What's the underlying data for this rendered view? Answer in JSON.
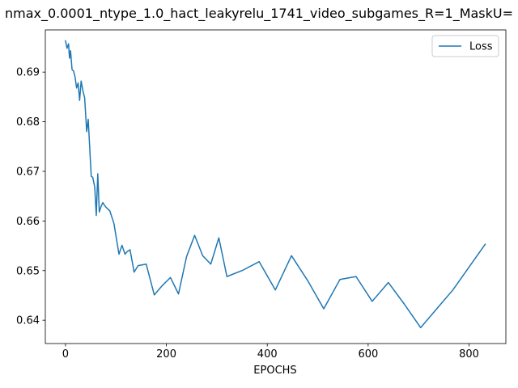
{
  "chart_data": {
    "type": "line",
    "title": "nmax_0.0001_ntype_1.0_hact_leakyrelu_1741_video_subgames_R=1_MaskU=",
    "xlabel": "EPOCHS",
    "ylabel": "",
    "xlim": [
      -40,
      873
    ],
    "ylim": [
      0.6353,
      0.6985
    ],
    "xticks": [
      0,
      200,
      400,
      600,
      800
    ],
    "yticks": [
      0.64,
      0.65,
      0.66,
      0.67,
      0.68,
      0.69
    ],
    "ytick_labels": [
      "0.64",
      "0.65",
      "0.66",
      "0.67",
      "0.68",
      "0.69"
    ],
    "grid": false,
    "legend": {
      "position": "top-right",
      "entries": [
        "Loss"
      ]
    },
    "series": [
      {
        "name": "Loss",
        "color": "#1f77b4",
        "x": [
          0,
          3,
          6,
          8,
          10,
          13,
          16,
          19,
          22,
          25,
          28,
          31,
          35,
          38,
          42,
          45,
          48,
          51,
          54,
          58,
          61,
          64,
          67,
          70,
          74,
          77,
          80,
          88,
          96,
          106,
          112,
          118,
          122,
          128,
          136,
          144,
          160,
          176,
          192,
          208,
          224,
          240,
          256,
          272,
          288,
          304,
          320,
          352,
          384,
          416,
          448,
          480,
          512,
          544,
          576,
          608,
          640,
          672,
          704,
          736,
          768,
          800,
          832
        ],
        "y": [
          0.6963,
          0.6948,
          0.6957,
          0.6928,
          0.6943,
          0.6905,
          0.6902,
          0.689,
          0.6868,
          0.6878,
          0.6843,
          0.6882,
          0.686,
          0.6848,
          0.678,
          0.6805,
          0.6748,
          0.669,
          0.6688,
          0.6668,
          0.6611,
          0.6695,
          0.6618,
          0.6628,
          0.6637,
          0.6632,
          0.6628,
          0.662,
          0.6595,
          0.6533,
          0.6551,
          0.6533,
          0.6538,
          0.6542,
          0.6497,
          0.651,
          0.6513,
          0.6451,
          0.647,
          0.6486,
          0.6453,
          0.6528,
          0.6571,
          0.653,
          0.6513,
          0.6566,
          0.6488,
          0.6501,
          0.6518,
          0.6461,
          0.653,
          0.648,
          0.6423,
          0.6482,
          0.6488,
          0.6438,
          0.6476,
          0.6432,
          0.6385,
          0.6423,
          0.6461,
          0.6507,
          0.6553
        ]
      }
    ]
  }
}
